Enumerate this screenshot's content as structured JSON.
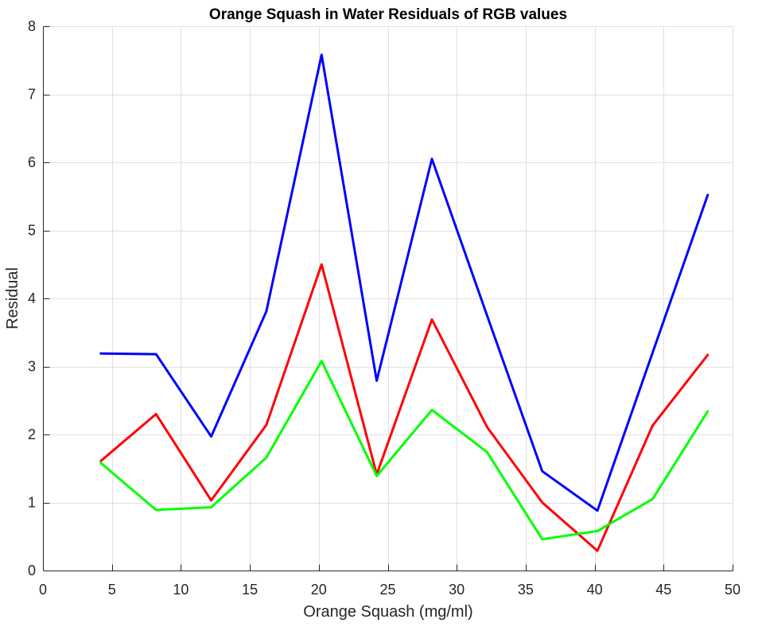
{
  "chart_data": {
    "type": "line",
    "title": "Orange Squash in Water Residuals of RGB values",
    "xlabel": "Orange Squash (mg/ml)",
    "ylabel": "Residual",
    "xlim": [
      0,
      50
    ],
    "ylim": [
      0,
      8
    ],
    "xticks": [
      0,
      5,
      10,
      15,
      20,
      25,
      30,
      35,
      40,
      45,
      50
    ],
    "yticks": [
      0,
      1,
      2,
      3,
      4,
      5,
      6,
      7,
      8
    ],
    "grid": true,
    "legend": null,
    "x": [
      4.2,
      8.2,
      12.2,
      16.2,
      20.2,
      24.2,
      28.2,
      32.2,
      36.2,
      40.2,
      44.2,
      48.2
    ],
    "series": [
      {
        "name": "Blue",
        "color": "#0000ff",
        "values": [
          3.19,
          3.18,
          1.97,
          3.81,
          7.58,
          2.79,
          6.05,
          3.75,
          1.46,
          0.88,
          3.2,
          5.52
        ]
      },
      {
        "name": "Red",
        "color": "#ff0000",
        "values": [
          1.61,
          2.3,
          1.03,
          2.14,
          4.5,
          1.41,
          3.69,
          2.11,
          1.0,
          0.29,
          2.13,
          3.17
        ]
      },
      {
        "name": "Green",
        "color": "#00ff00",
        "values": [
          1.58,
          0.89,
          0.93,
          1.66,
          3.08,
          1.39,
          2.36,
          1.74,
          0.46,
          0.58,
          1.05,
          2.34
        ]
      }
    ]
  }
}
